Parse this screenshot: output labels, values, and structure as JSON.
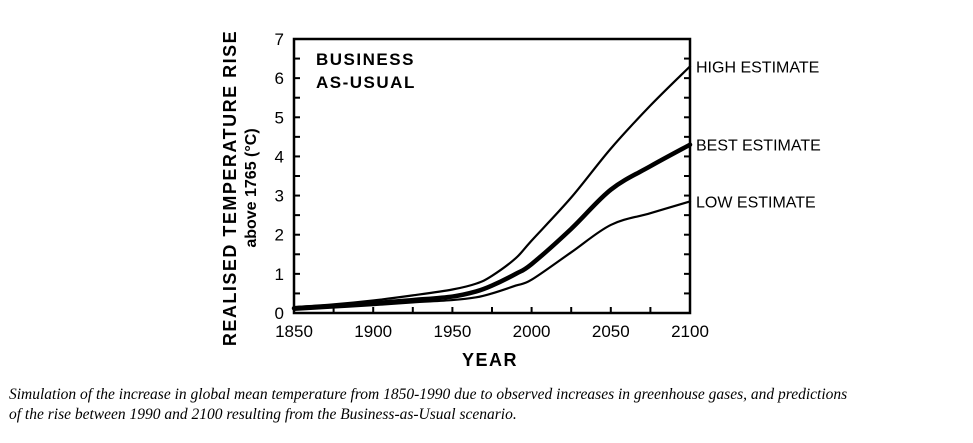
{
  "chart_data": {
    "type": "line",
    "annotation": [
      "BUSINESS",
      "AS-USUAL"
    ],
    "xlabel": "YEAR",
    "ylabel": "REALISED TEMPERATURE RISE",
    "ylabel_sub": "above 1765 (°C)",
    "xlim": [
      1850,
      2100
    ],
    "ylim": [
      0,
      7
    ],
    "x_ticks": [
      1850,
      1900,
      1950,
      2000,
      2050,
      2100
    ],
    "x_tick_labels": [
      "1850",
      "1900",
      "1950",
      "2000",
      "2050",
      "2100"
    ],
    "y_ticks": [
      0,
      1,
      2,
      3,
      4,
      5,
      6,
      7
    ],
    "y_tick_labels": [
      "0",
      "1",
      "2",
      "3",
      "4",
      "5",
      "6",
      "7"
    ],
    "grid": false,
    "legend": "right-end labels",
    "x": [
      1850,
      1875,
      1900,
      1925,
      1950,
      1965,
      1975,
      1990,
      2000,
      2025,
      2050,
      2075,
      2100
    ],
    "series": [
      {
        "name": "HIGH ESTIMATE",
        "style": "thin",
        "values": [
          0.15,
          0.22,
          0.32,
          0.45,
          0.6,
          0.75,
          0.95,
          1.4,
          1.85,
          2.95,
          4.2,
          5.3,
          6.3
        ]
      },
      {
        "name": "BEST ESTIMATE",
        "style": "thick",
        "values": [
          0.12,
          0.18,
          0.25,
          0.33,
          0.42,
          0.55,
          0.7,
          1.0,
          1.25,
          2.15,
          3.15,
          3.75,
          4.3
        ]
      },
      {
        "name": "LOW ESTIMATE",
        "style": "thin",
        "values": [
          0.08,
          0.14,
          0.2,
          0.27,
          0.33,
          0.4,
          0.5,
          0.7,
          0.85,
          1.55,
          2.25,
          2.55,
          2.85
        ]
      }
    ],
    "line_color": "#000000"
  },
  "caption": {
    "line1": "Simulation of the increase in global mean temperature from 1850-1990 due to observed increases in greenhouse gases, and predictions",
    "line2": "of the rise between 1990 and 2100 resulting from  the Business-as-Usual scenario."
  }
}
